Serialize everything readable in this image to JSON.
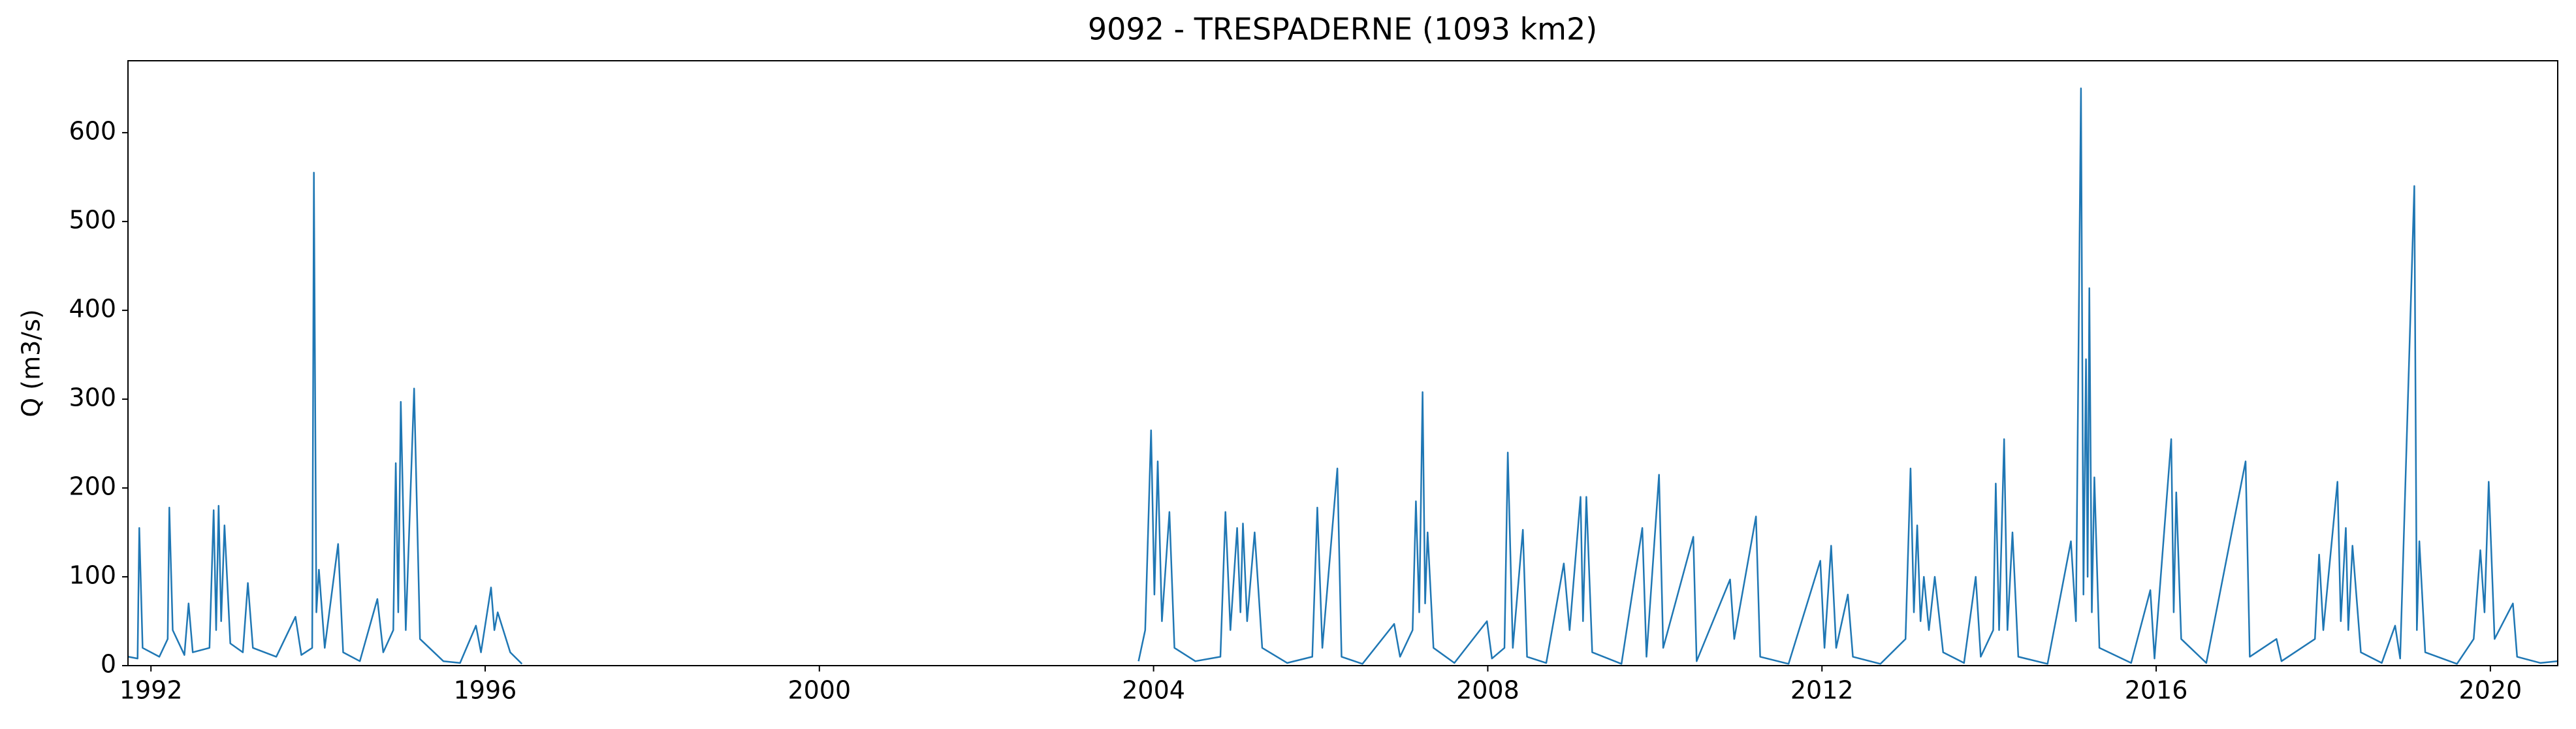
{
  "chart_data": {
    "type": "line",
    "title": "9092 - TRESPADERNE (1093 km2)",
    "ylabel": "Q (m3/s)",
    "x": [
      1991.73,
      1991.84,
      1991.86,
      1991.9,
      1992.1,
      1992.2,
      1992.22,
      1992.26,
      1992.4,
      1992.45,
      1992.5,
      1992.7,
      1992.75,
      1992.78,
      1992.81,
      1992.84,
      1992.88,
      1992.95,
      1993.1,
      1993.16,
      1993.22,
      1993.5,
      1993.73,
      1993.8,
      1993.93,
      1993.95,
      1993.98,
      1994.01,
      1994.08,
      1994.24,
      1994.3,
      1994.5,
      1994.71,
      1994.78,
      1994.9,
      1994.93,
      1994.96,
      1994.99,
      1995.05,
      1995.15,
      1995.22,
      1995.5,
      1995.7,
      1995.89,
      1995.95,
      1996.07,
      1996.11,
      1996.15,
      1996.3,
      1996.44,
      1996.5,
      2003.7,
      2003.82,
      2003.9,
      2003.97,
      2004.01,
      2004.05,
      2004.1,
      2004.19,
      2004.25,
      2004.5,
      2004.8,
      2004.86,
      2004.92,
      2005.0,
      2005.04,
      2005.07,
      2005.12,
      2005.21,
      2005.3,
      2005.6,
      2005.9,
      2005.96,
      2006.02,
      2006.2,
      2006.25,
      2006.5,
      2006.88,
      2006.95,
      2007.1,
      2007.14,
      2007.18,
      2007.22,
      2007.25,
      2007.28,
      2007.35,
      2007.6,
      2007.99,
      2008.05,
      2008.2,
      2008.24,
      2008.3,
      2008.42,
      2008.47,
      2008.7,
      2008.91,
      2008.98,
      2009.11,
      2009.14,
      2009.18,
      2009.25,
      2009.6,
      2009.85,
      2009.9,
      2010.05,
      2010.1,
      2010.46,
      2010.5,
      2010.9,
      2010.95,
      2011.21,
      2011.26,
      2011.6,
      2011.98,
      2012.03,
      2012.11,
      2012.17,
      2012.31,
      2012.37,
      2012.7,
      2013.0,
      2013.06,
      2013.1,
      2013.14,
      2013.18,
      2013.22,
      2013.28,
      2013.35,
      2013.45,
      2013.7,
      2013.84,
      2013.9,
      2014.05,
      2014.08,
      2014.12,
      2014.18,
      2014.22,
      2014.28,
      2014.35,
      2014.7,
      2014.98,
      2015.04,
      2015.1,
      2015.13,
      2015.16,
      2015.18,
      2015.2,
      2015.23,
      2015.26,
      2015.32,
      2015.7,
      2015.93,
      2015.98,
      2016.18,
      2016.21,
      2016.24,
      2016.3,
      2016.6,
      2017.07,
      2017.12,
      2017.44,
      2017.5,
      2017.9,
      2017.95,
      2018.0,
      2018.17,
      2018.21,
      2018.27,
      2018.3,
      2018.35,
      2018.45,
      2018.7,
      2018.86,
      2018.92,
      2019.09,
      2019.12,
      2019.15,
      2019.22,
      2019.6,
      2019.8,
      2019.88,
      2019.93,
      2019.98,
      2020.05,
      2020.27,
      2020.32,
      2020.6,
      2020.8
    ],
    "series": [
      {
        "name": "Q",
        "color": "#1f77b4",
        "values": [
          10,
          8,
          155,
          20,
          10,
          30,
          178,
          40,
          12,
          70,
          15,
          20,
          175,
          40,
          180,
          50,
          158,
          25,
          15,
          93,
          20,
          10,
          55,
          12,
          20,
          555,
          60,
          108,
          20,
          137,
          15,
          5,
          75,
          15,
          40,
          228,
          60,
          297,
          40,
          312,
          30,
          5,
          3,
          45,
          15,
          88,
          40,
          60,
          15,
          2,
          null,
          null,
          5,
          40,
          265,
          80,
          230,
          50,
          173,
          20,
          5,
          10,
          173,
          40,
          155,
          60,
          160,
          50,
          150,
          20,
          3,
          10,
          178,
          20,
          222,
          10,
          2,
          47,
          10,
          40,
          185,
          60,
          308,
          70,
          150,
          20,
          3,
          50,
          8,
          20,
          240,
          20,
          153,
          10,
          3,
          115,
          40,
          190,
          50,
          190,
          15,
          2,
          155,
          10,
          215,
          20,
          145,
          5,
          97,
          30,
          168,
          10,
          2,
          118,
          20,
          135,
          20,
          80,
          10,
          2,
          30,
          222,
          60,
          158,
          50,
          100,
          40,
          100,
          15,
          3,
          100,
          10,
          40,
          205,
          40,
          255,
          40,
          150,
          10,
          2,
          140,
          50,
          650,
          80,
          345,
          100,
          425,
          60,
          212,
          20,
          3,
          85,
          8,
          255,
          60,
          195,
          30,
          3,
          230,
          10,
          30,
          5,
          30,
          125,
          40,
          207,
          50,
          155,
          40,
          135,
          15,
          3,
          45,
          8,
          540,
          40,
          140,
          15,
          2,
          30,
          130,
          60,
          207,
          30,
          70,
          10,
          3,
          5
        ]
      }
    ],
    "xlim": [
      1991.725,
      2020.806
    ],
    "xticks": [
      1992,
      1996,
      2000,
      2004,
      2008,
      2012,
      2016,
      2020
    ],
    "ylim": [
      0,
      681
    ],
    "yticks": [
      0,
      100,
      200,
      300,
      400,
      500,
      600
    ]
  }
}
